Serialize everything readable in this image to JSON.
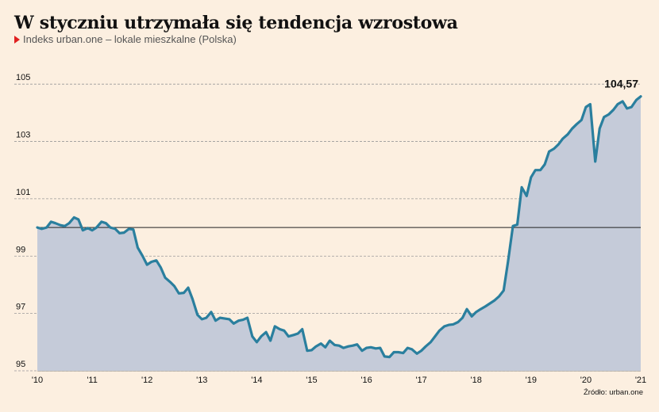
{
  "header": {
    "title": "W styczniu utrzymała się tendencja wzrostowa",
    "subtitle": "Indeks urban.one – lokale mieszkalne (Polska)"
  },
  "footer": {
    "source": "Źródło: urban.one"
  },
  "colors": {
    "line": "#2a7f9e",
    "area": "#c5cbd9",
    "background": "#fcefe0",
    "baseline": "#222222",
    "grid": "#999999",
    "marker": "#e02020"
  },
  "chart_data": {
    "type": "area",
    "title": "W styczniu utrzymała się tendencja wzrostowa",
    "subtitle": "Indeks urban.one – lokale mieszkalne (Polska)",
    "xlabel": "",
    "ylabel": "",
    "xlim": [
      2010,
      2021
    ],
    "ylim": [
      95,
      106
    ],
    "x_ticks": [
      2010,
      2011,
      2012,
      2013,
      2014,
      2015,
      2016,
      2017,
      2018,
      2019,
      2020,
      2021
    ],
    "x_tick_labels": [
      "'10",
      "'11",
      "'12",
      "'13",
      "'14",
      "'15",
      "'16",
      "'17",
      "'18",
      "'19",
      "'20",
      "'21"
    ],
    "y_ticks": [
      95,
      97,
      99,
      101,
      103,
      105
    ],
    "y_tick_labels": [
      "95",
      "97",
      "99",
      "101",
      "103",
      "105"
    ],
    "grid": true,
    "reference_line": 100,
    "annotation": {
      "text": "104,57",
      "x": 2021.0,
      "y": 104.57
    },
    "series": [
      {
        "x": [
          2010.0,
          2010.08,
          2010.17,
          2010.25,
          2010.33,
          2010.42,
          2010.5,
          2010.58,
          2010.67,
          2010.75,
          2010.83,
          2010.92,
          2011.0,
          2011.08,
          2011.17,
          2011.25,
          2011.33,
          2011.42,
          2011.5,
          2011.58,
          2011.67,
          2011.75,
          2011.83,
          2011.92,
          2012.0,
          2012.08,
          2012.17,
          2012.25,
          2012.33,
          2012.42,
          2012.5,
          2012.58,
          2012.67,
          2012.75,
          2012.83,
          2012.92,
          2013.0,
          2013.08,
          2013.17,
          2013.25,
          2013.33,
          2013.42,
          2013.5,
          2013.58,
          2013.67,
          2013.75,
          2013.83,
          2013.92,
          2014.0,
          2014.08,
          2014.17,
          2014.25,
          2014.33,
          2014.42,
          2014.5,
          2014.58,
          2014.67,
          2014.75,
          2014.83,
          2014.92,
          2015.0,
          2015.08,
          2015.17,
          2015.25,
          2015.33,
          2015.42,
          2015.5,
          2015.58,
          2015.67,
          2015.75,
          2015.83,
          2015.92,
          2016.0,
          2016.08,
          2016.17,
          2016.25,
          2016.33,
          2016.42,
          2016.5,
          2016.58,
          2016.67,
          2016.75,
          2016.83,
          2016.92,
          2017.0,
          2017.08,
          2017.17,
          2017.25,
          2017.33,
          2017.42,
          2017.5,
          2017.58,
          2017.67,
          2017.75,
          2017.83,
          2017.92,
          2018.0,
          2018.08,
          2018.17,
          2018.25,
          2018.33,
          2018.42,
          2018.5,
          2018.58,
          2018.67,
          2018.75,
          2018.83,
          2018.92,
          2019.0,
          2019.08,
          2019.17,
          2019.25,
          2019.33,
          2019.42,
          2019.5,
          2019.58,
          2019.67,
          2019.75,
          2019.83,
          2019.92,
          2020.0,
          2020.08,
          2020.17,
          2020.25,
          2020.33,
          2020.42,
          2020.5,
          2020.58,
          2020.67,
          2020.75,
          2020.83,
          2020.92,
          2021.0
        ],
        "values": [
          100.0,
          99.95,
          100.0,
          100.2,
          100.15,
          100.08,
          100.05,
          100.15,
          100.35,
          100.28,
          99.9,
          99.98,
          99.9,
          100.0,
          100.2,
          100.15,
          100.0,
          99.95,
          99.8,
          99.82,
          99.95,
          99.93,
          99.3,
          99.0,
          98.7,
          98.8,
          98.85,
          98.6,
          98.25,
          98.1,
          97.95,
          97.7,
          97.72,
          97.9,
          97.5,
          96.95,
          96.8,
          96.85,
          97.05,
          96.75,
          96.85,
          96.82,
          96.8,
          96.65,
          96.75,
          96.78,
          96.85,
          96.2,
          96.0,
          96.2,
          96.35,
          96.05,
          96.55,
          96.45,
          96.4,
          96.2,
          96.25,
          96.3,
          96.45,
          95.7,
          95.72,
          95.85,
          95.95,
          95.82,
          96.05,
          95.9,
          95.88,
          95.8,
          95.85,
          95.88,
          95.92,
          95.7,
          95.8,
          95.82,
          95.78,
          95.8,
          95.5,
          95.48,
          95.65,
          95.65,
          95.62,
          95.8,
          95.75,
          95.6,
          95.7,
          95.85,
          96.0,
          96.2,
          96.4,
          96.55,
          96.6,
          96.62,
          96.7,
          96.85,
          97.15,
          96.9,
          97.05,
          97.15,
          97.25,
          97.35,
          97.45,
          97.6,
          97.8,
          98.8,
          100.05,
          100.1,
          101.4,
          101.1,
          101.75,
          102.0,
          102.0,
          102.2,
          102.65,
          102.75,
          102.9,
          103.1,
          103.25,
          103.45,
          103.6,
          103.75,
          104.2,
          104.3,
          102.3,
          103.45,
          103.85,
          103.95,
          104.1,
          104.3,
          104.4,
          104.15,
          104.2,
          104.45,
          104.57
        ]
      }
    ]
  }
}
